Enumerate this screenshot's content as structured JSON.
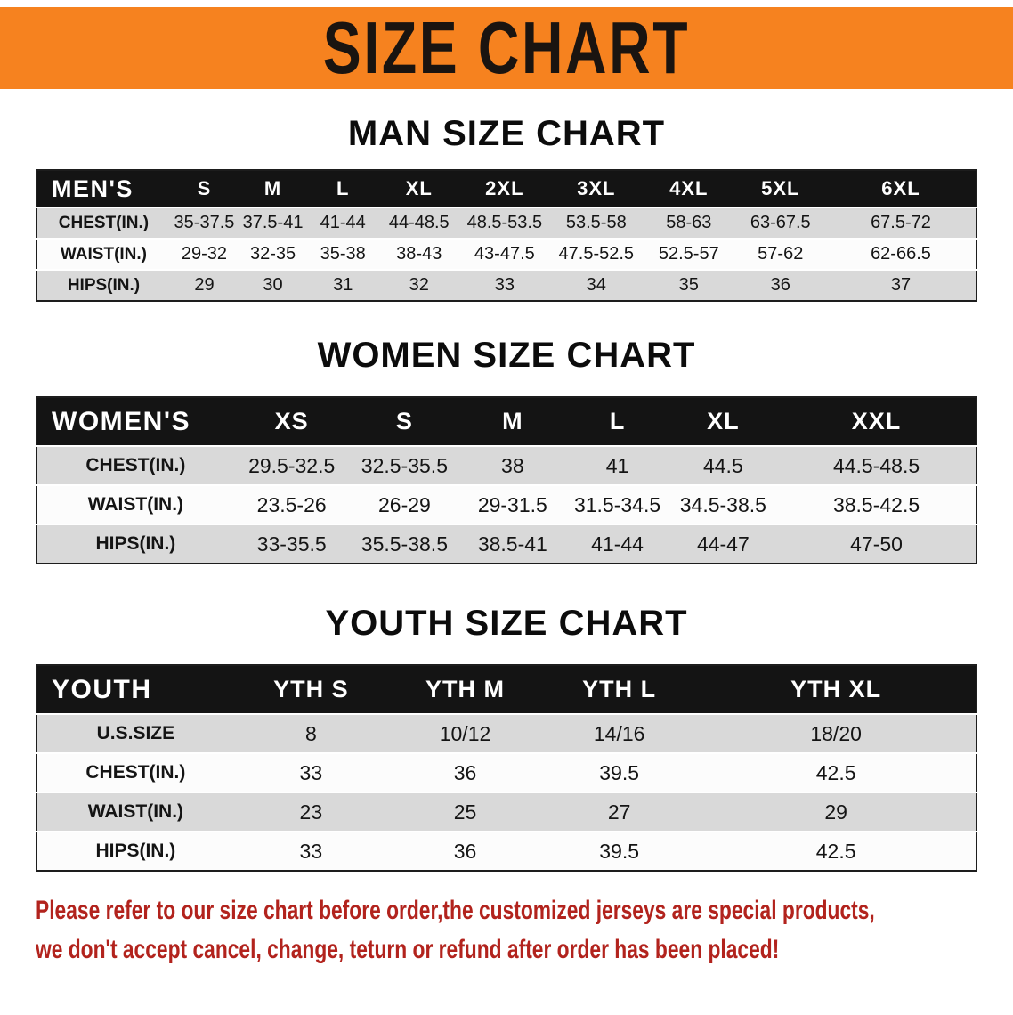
{
  "banner": {
    "title": "SIZE CHART"
  },
  "colors": {
    "page-bg": "#FFFFFF",
    "banner-bg": "#F6821F",
    "banner-text": "#1A1410",
    "table-header-bg": "#141414",
    "table-header-text": "#FFFFFF",
    "row-gray": "#D9D9D9",
    "row-white": "#FCFCFC",
    "disclaimer-red": "#B2231D"
  },
  "sections": [
    {
      "id": "men",
      "heading": "MAN SIZE CHART",
      "table": {
        "header": [
          "MEN'S",
          "S",
          "M",
          "L",
          "XL",
          "2XL",
          "3XL",
          "4XL",
          "5XL",
          "6XL"
        ],
        "rows": [
          [
            "CHEST(IN.)",
            "35-37.5",
            "37.5-41",
            "41-44",
            "44-48.5",
            "48.5-53.5",
            "53.5-58",
            "58-63",
            "63-67.5",
            "67.5-72"
          ],
          [
            "WAIST(IN.)",
            "29-32",
            "32-35",
            "35-38",
            "38-43",
            "43-47.5",
            "47.5-52.5",
            "52.5-57",
            "57-62",
            "62-66.5"
          ],
          [
            "HIPS(IN.)",
            "29",
            "30",
            "31",
            "32",
            "33",
            "34",
            "35",
            "36",
            "37"
          ]
        ]
      }
    },
    {
      "id": "women",
      "heading": "WOMEN SIZE CHART",
      "table": {
        "header": [
          "WOMEN'S",
          "XS",
          "S",
          "M",
          "L",
          "XL",
          "XXL"
        ],
        "rows": [
          [
            "CHEST(IN.)",
            "29.5-32.5",
            "32.5-35.5",
            "38",
            "41",
            "44.5",
            "44.5-48.5"
          ],
          [
            "WAIST(IN.)",
            "23.5-26",
            "26-29",
            "29-31.5",
            "31.5-34.5",
            "34.5-38.5",
            "38.5-42.5"
          ],
          [
            "HIPS(IN.)",
            "33-35.5",
            "35.5-38.5",
            "38.5-41",
            "41-44",
            "44-47",
            "47-50"
          ]
        ]
      }
    },
    {
      "id": "youth",
      "heading": "YOUTH SIZE CHART",
      "table": {
        "header": [
          "YOUTH",
          "YTH S",
          "YTH M",
          "YTH L",
          "YTH XL"
        ],
        "rows": [
          [
            "U.S.SIZE",
            "8",
            "10/12",
            "14/16",
            "18/20"
          ],
          [
            "CHEST(IN.)",
            "33",
            "36",
            "39.5",
            "42.5"
          ],
          [
            "WAIST(IN.)",
            "23",
            "25",
            "27",
            "29"
          ],
          [
            "HIPS(IN.)",
            "33",
            "36",
            "39.5",
            "42.5"
          ]
        ]
      }
    }
  ],
  "disclaimer": {
    "lines": [
      "Please refer to our size chart before order,the customized jerseys are special products,",
      "we don't accept cancel, change, teturn or refund after order has been placed!"
    ]
  }
}
